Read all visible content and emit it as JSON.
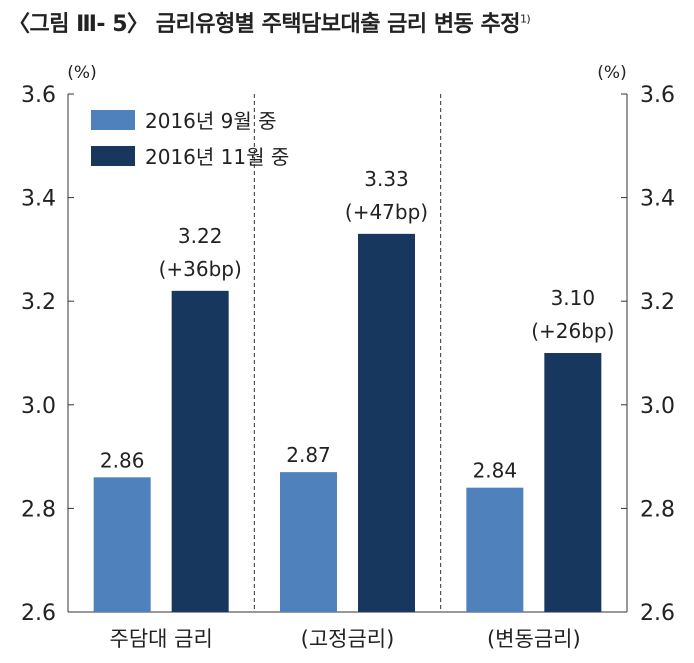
{
  "title": {
    "prefix": "〈그림 Ⅲ- 5〉",
    "text": "금리유형별 주택담보대출 금리 변동 추정",
    "footnote_mark": "1)"
  },
  "chart_data": {
    "type": "bar",
    "unit": "(%)",
    "ylim": [
      2.6,
      3.6
    ],
    "yticks": [
      "2.6",
      "2.8",
      "3.0",
      "3.2",
      "3.4",
      "3.6"
    ],
    "categories": [
      "주담대 금리",
      "(고정금리)",
      "(변동금리)"
    ],
    "series": [
      {
        "name": "2016년 9월 중",
        "color": "#4f81bd",
        "values": [
          2.86,
          2.87,
          2.84
        ],
        "labels": [
          "2.86",
          "2.87",
          "2.84"
        ],
        "sublabels": [
          "",
          "",
          ""
        ]
      },
      {
        "name": "2016년 11월 중",
        "color": "#17375e",
        "values": [
          3.22,
          3.33,
          3.1
        ],
        "labels": [
          "3.22",
          "3.33",
          "3.10"
        ],
        "sublabels": [
          "(+36bp)",
          "(+47bp)",
          "(+26bp)"
        ]
      }
    ],
    "legend": "top-left",
    "grid": false
  }
}
